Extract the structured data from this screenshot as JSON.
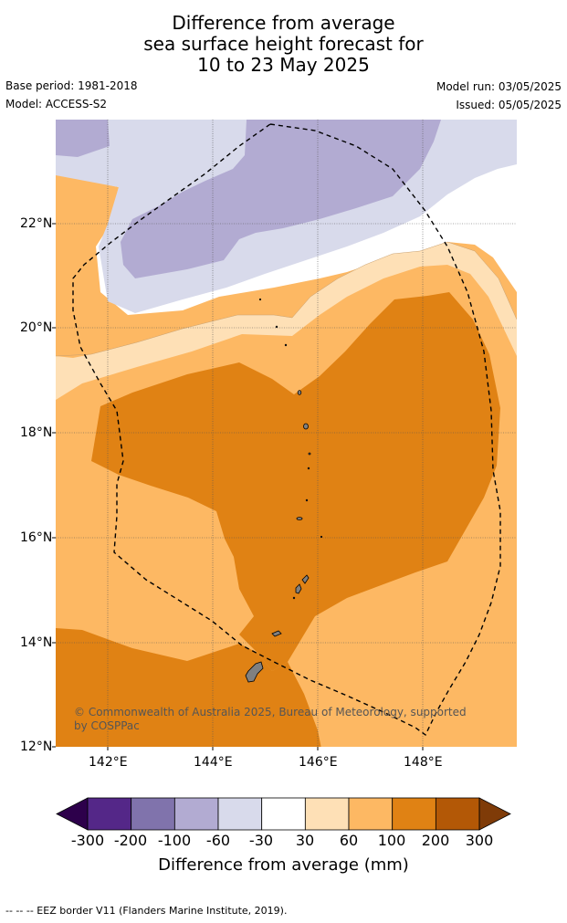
{
  "title": {
    "line1": "Difference from average",
    "line2": "sea surface height forecast for",
    "line3": "10 to 23 May 2025"
  },
  "meta": {
    "base_period": "Base period: 1981-2018",
    "model": "Model: ACCESS-S2",
    "model_run": "Model run: 03/05/2025",
    "issued": "Issued: 05/05/2025"
  },
  "map": {
    "lat_labels": [
      "22°N",
      "20°N",
      "18°N",
      "16°N",
      "14°N",
      "12°N"
    ],
    "lon_labels": [
      "142°E",
      "144°E",
      "146°E",
      "148°E"
    ],
    "copyright": "© Commonwealth of Australia 2025, Bureau of Meteorology, supported by COSPPac",
    "land_color": "#808080",
    "eez_border_style": "dashed"
  },
  "colorbar": {
    "label": "Difference from average (mm)",
    "ticks": [
      "-300",
      "-200",
      "-100",
      "-60",
      "-30",
      "30",
      "60",
      "100",
      "200",
      "300"
    ],
    "colors": [
      "#2d004b",
      "#542788",
      "#8073ac",
      "#b2abd2",
      "#d8daeb",
      "#ffffff",
      "#fee0b6",
      "#fdb863",
      "#e08214",
      "#b35806",
      "#7f3b08"
    ]
  },
  "footer": "--  --  -- EEZ border V11 (Flanders Marine Institute, 2019)."
}
